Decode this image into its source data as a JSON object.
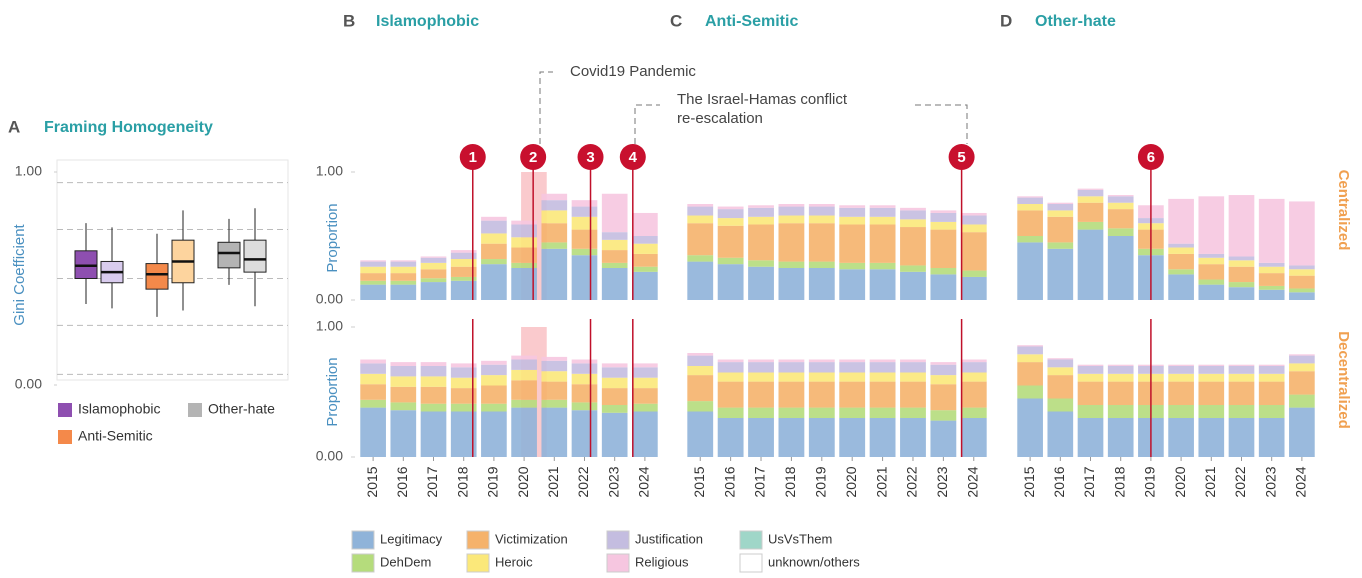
{
  "panel_labels": [
    "A",
    "B",
    "C",
    "D"
  ],
  "annotations": [
    "Covid19 Pandemic",
    "The Israel-Hamas conflict",
    "re-escalation"
  ],
  "legend": [
    {
      "name": "Legitimacy",
      "color": "#8fb3d9"
    },
    {
      "name": "DehDem",
      "color": "#b5dc7c"
    },
    {
      "name": "Victimization",
      "color": "#f5b26b"
    },
    {
      "name": "Heroic",
      "color": "#fbe87a"
    },
    {
      "name": "Justification",
      "color": "#c4bde0"
    },
    {
      "name": "Religious",
      "color": "#f6c6e0"
    },
    {
      "name": "UsVsThem",
      "color": "#9fd6c8"
    },
    {
      "name": "unknown/others",
      "color": "#ffffff"
    }
  ],
  "chart_data": [
    {
      "type": "box",
      "title": "Framing Homogeneity",
      "ylabel": "Gini Coefficient",
      "ylim": [
        0,
        1
      ],
      "yticks": [
        {
          "value": 0,
          "label": "0.00"
        },
        {
          "value": 1,
          "label": "1.00"
        }
      ],
      "ygrid": [
        0.05,
        0.28,
        0.5,
        0.73,
        0.95
      ],
      "series": [
        {
          "name": "Islamophobic",
          "colors": [
            "#8e4fb0",
            "#d9ccee"
          ],
          "boxes": [
            {
              "min": 0.38,
              "q1": 0.5,
              "median": 0.56,
              "q3": 0.63,
              "max": 0.76
            },
            {
              "min": 0.36,
              "q1": 0.48,
              "median": 0.53,
              "q3": 0.58,
              "max": 0.74
            }
          ]
        },
        {
          "name": "Anti-Semitic",
          "colors": [
            "#f4894a",
            "#fdd49e"
          ],
          "boxes": [
            {
              "min": 0.32,
              "q1": 0.45,
              "median": 0.52,
              "q3": 0.57,
              "max": 0.71
            },
            {
              "min": 0.35,
              "q1": 0.48,
              "median": 0.58,
              "q3": 0.68,
              "max": 0.82
            }
          ]
        },
        {
          "name": "Other-hate",
          "colors": [
            "#b4b4b4",
            "#dddddd"
          ],
          "boxes": [
            {
              "min": 0.47,
              "q1": 0.55,
              "median": 0.62,
              "q3": 0.67,
              "max": 0.78
            },
            {
              "min": 0.37,
              "q1": 0.53,
              "median": 0.59,
              "q3": 0.68,
              "max": 0.83
            }
          ]
        }
      ]
    },
    {
      "type": "stacked_bar",
      "title": "Islamophobic",
      "ylabel": "Proportion",
      "ylim": [
        0,
        1
      ],
      "yticks": [
        {
          "value": 0,
          "label": "0.00"
        },
        {
          "value": 1,
          "label": "1.00"
        }
      ],
      "x": [
        2015,
        2016,
        2017,
        2018,
        2019,
        2020,
        2021,
        2022,
        2023,
        2024
      ],
      "xlim": [
        2014.4,
        2024.6
      ],
      "events": [
        {
          "label": "1",
          "x": 2018.3
        },
        {
          "label": "2",
          "x": 2020.3
        },
        {
          "label": "3",
          "x": 2022.2
        },
        {
          "label": "4",
          "x": 2023.6
        }
      ],
      "shade": [
        2019.9,
        2020.75
      ],
      "series": [
        {
          "values": [
            0.12,
            0.12,
            0.14,
            0.15,
            0.28,
            0.25,
            0.4,
            0.35,
            0.25,
            0.22
          ]
        },
        {
          "values": [
            0.03,
            0.03,
            0.03,
            0.03,
            0.04,
            0.04,
            0.05,
            0.05,
            0.04,
            0.04
          ]
        },
        {
          "values": [
            0.06,
            0.06,
            0.07,
            0.08,
            0.12,
            0.12,
            0.15,
            0.15,
            0.1,
            0.1
          ]
        },
        {
          "values": [
            0.05,
            0.05,
            0.05,
            0.06,
            0.08,
            0.08,
            0.1,
            0.1,
            0.08,
            0.08
          ]
        },
        {
          "values": [
            0.04,
            0.04,
            0.04,
            0.05,
            0.1,
            0.1,
            0.08,
            0.08,
            0.06,
            0.06
          ]
        },
        {
          "values": [
            0.01,
            0.01,
            0.01,
            0.02,
            0.03,
            0.03,
            0.05,
            0.05,
            0.3,
            0.18
          ]
        }
      ]
    },
    {
      "type": "stacked_bar",
      "ylabel": "Proportion",
      "ylim": [
        0,
        1
      ],
      "yticks": [
        {
          "value": 0,
          "label": "0.00"
        },
        {
          "value": 1,
          "label": "1.00"
        }
      ],
      "x": [
        2015,
        2016,
        2017,
        2018,
        2019,
        2020,
        2021,
        2022,
        2023,
        2024
      ],
      "xlim": [
        2014.4,
        2024.6
      ],
      "xticks": [
        2015,
        2016,
        2017,
        2018,
        2019,
        2020,
        2021,
        2022,
        2023,
        2024
      ],
      "event_lines": [
        2018.3,
        2022.2,
        2023.6
      ],
      "shade": [
        2019.9,
        2020.75
      ],
      "series": [
        {
          "values": [
            0.38,
            0.36,
            0.35,
            0.35,
            0.35,
            0.38,
            0.38,
            0.36,
            0.34,
            0.35
          ]
        },
        {
          "values": [
            0.06,
            0.06,
            0.06,
            0.06,
            0.06,
            0.06,
            0.06,
            0.06,
            0.06,
            0.06
          ]
        },
        {
          "values": [
            0.12,
            0.12,
            0.13,
            0.12,
            0.14,
            0.15,
            0.14,
            0.14,
            0.13,
            0.12
          ]
        },
        {
          "values": [
            0.08,
            0.08,
            0.08,
            0.08,
            0.08,
            0.08,
            0.08,
            0.08,
            0.08,
            0.08
          ]
        },
        {
          "values": [
            0.08,
            0.08,
            0.08,
            0.08,
            0.08,
            0.08,
            0.08,
            0.08,
            0.08,
            0.08
          ]
        },
        {
          "values": [
            0.03,
            0.03,
            0.03,
            0.03,
            0.03,
            0.03,
            0.03,
            0.03,
            0.03,
            0.03
          ]
        }
      ]
    },
    {
      "type": "stacked_bar",
      "title": "Anti-Semitic",
      "ylim": [
        0,
        1
      ],
      "x": [
        2015,
        2016,
        2017,
        2018,
        2019,
        2020,
        2021,
        2022,
        2023,
        2024
      ],
      "xlim": [
        2014.4,
        2024.6
      ],
      "events": [
        {
          "label": "5",
          "x": 2023.6
        }
      ],
      "series": [
        {
          "values": [
            0.3,
            0.28,
            0.26,
            0.25,
            0.25,
            0.24,
            0.24,
            0.22,
            0.2,
            0.18
          ]
        },
        {
          "values": [
            0.05,
            0.05,
            0.05,
            0.05,
            0.05,
            0.05,
            0.05,
            0.05,
            0.05,
            0.05
          ]
        },
        {
          "values": [
            0.25,
            0.25,
            0.28,
            0.3,
            0.3,
            0.3,
            0.3,
            0.3,
            0.3,
            0.3
          ]
        },
        {
          "values": [
            0.06,
            0.06,
            0.06,
            0.06,
            0.06,
            0.06,
            0.06,
            0.06,
            0.06,
            0.06
          ]
        },
        {
          "values": [
            0.07,
            0.07,
            0.07,
            0.07,
            0.07,
            0.07,
            0.07,
            0.07,
            0.07,
            0.07
          ]
        },
        {
          "values": [
            0.02,
            0.02,
            0.02,
            0.02,
            0.02,
            0.02,
            0.02,
            0.02,
            0.02,
            0.02
          ]
        }
      ]
    },
    {
      "type": "stacked_bar",
      "ylim": [
        0,
        1
      ],
      "x": [
        2015,
        2016,
        2017,
        2018,
        2019,
        2020,
        2021,
        2022,
        2023,
        2024
      ],
      "xlim": [
        2014.4,
        2024.6
      ],
      "xticks": [
        2015,
        2016,
        2017,
        2018,
        2019,
        2020,
        2021,
        2022,
        2023,
        2024
      ],
      "event_lines": [
        2023.6
      ],
      "series": [
        {
          "values": [
            0.35,
            0.3,
            0.3,
            0.3,
            0.3,
            0.3,
            0.3,
            0.3,
            0.28,
            0.3
          ]
        },
        {
          "values": [
            0.08,
            0.08,
            0.08,
            0.08,
            0.08,
            0.08,
            0.08,
            0.08,
            0.08,
            0.08
          ]
        },
        {
          "values": [
            0.2,
            0.2,
            0.2,
            0.2,
            0.2,
            0.2,
            0.2,
            0.2,
            0.2,
            0.2
          ]
        },
        {
          "values": [
            0.07,
            0.07,
            0.07,
            0.07,
            0.07,
            0.07,
            0.07,
            0.07,
            0.07,
            0.07
          ]
        },
        {
          "values": [
            0.08,
            0.08,
            0.08,
            0.08,
            0.08,
            0.08,
            0.08,
            0.08,
            0.08,
            0.08
          ]
        },
        {
          "values": [
            0.02,
            0.02,
            0.02,
            0.02,
            0.02,
            0.02,
            0.02,
            0.02,
            0.02,
            0.02
          ]
        }
      ]
    },
    {
      "type": "stacked_bar",
      "title": "Other-hate",
      "row_label": "Centralized",
      "ylim": [
        0,
        1
      ],
      "x": [
        2015,
        2016,
        2017,
        2018,
        2019,
        2020,
        2021,
        2022,
        2023,
        2024
      ],
      "xlim": [
        2014.4,
        2024.6
      ],
      "events": [
        {
          "label": "6",
          "x": 2019.0
        }
      ],
      "series": [
        {
          "values": [
            0.45,
            0.4,
            0.55,
            0.5,
            0.35,
            0.2,
            0.12,
            0.1,
            0.08,
            0.06
          ]
        },
        {
          "values": [
            0.05,
            0.05,
            0.06,
            0.06,
            0.05,
            0.04,
            0.04,
            0.04,
            0.03,
            0.03
          ]
        },
        {
          "values": [
            0.2,
            0.2,
            0.15,
            0.15,
            0.15,
            0.12,
            0.12,
            0.12,
            0.1,
            0.1
          ]
        },
        {
          "values": [
            0.05,
            0.05,
            0.05,
            0.05,
            0.05,
            0.05,
            0.05,
            0.05,
            0.05,
            0.05
          ]
        },
        {
          "values": [
            0.05,
            0.05,
            0.05,
            0.05,
            0.04,
            0.03,
            0.03,
            0.03,
            0.03,
            0.03
          ]
        },
        {
          "values": [
            0.01,
            0.01,
            0.01,
            0.01,
            0.1,
            0.35,
            0.45,
            0.48,
            0.5,
            0.5
          ]
        }
      ]
    },
    {
      "type": "stacked_bar",
      "row_label": "Decentralized",
      "ylim": [
        0,
        1
      ],
      "x": [
        2015,
        2016,
        2017,
        2018,
        2019,
        2020,
        2021,
        2022,
        2023,
        2024
      ],
      "xlim": [
        2014.4,
        2024.6
      ],
      "xticks": [
        2015,
        2016,
        2017,
        2018,
        2019,
        2020,
        2021,
        2022,
        2023,
        2024
      ],
      "event_lines": [
        2019.0
      ],
      "series": [
        {
          "values": [
            0.45,
            0.35,
            0.3,
            0.3,
            0.3,
            0.3,
            0.3,
            0.3,
            0.3,
            0.38
          ]
        },
        {
          "values": [
            0.1,
            0.1,
            0.1,
            0.1,
            0.1,
            0.1,
            0.1,
            0.1,
            0.1,
            0.1
          ]
        },
        {
          "values": [
            0.18,
            0.18,
            0.18,
            0.18,
            0.18,
            0.18,
            0.18,
            0.18,
            0.18,
            0.18
          ]
        },
        {
          "values": [
            0.06,
            0.06,
            0.06,
            0.06,
            0.06,
            0.06,
            0.06,
            0.06,
            0.06,
            0.06
          ]
        },
        {
          "values": [
            0.06,
            0.06,
            0.06,
            0.06,
            0.06,
            0.06,
            0.06,
            0.06,
            0.06,
            0.06
          ]
        },
        {
          "values": [
            0.01,
            0.01,
            0.01,
            0.01,
            0.01,
            0.01,
            0.01,
            0.01,
            0.01,
            0.01
          ]
        }
      ]
    }
  ]
}
